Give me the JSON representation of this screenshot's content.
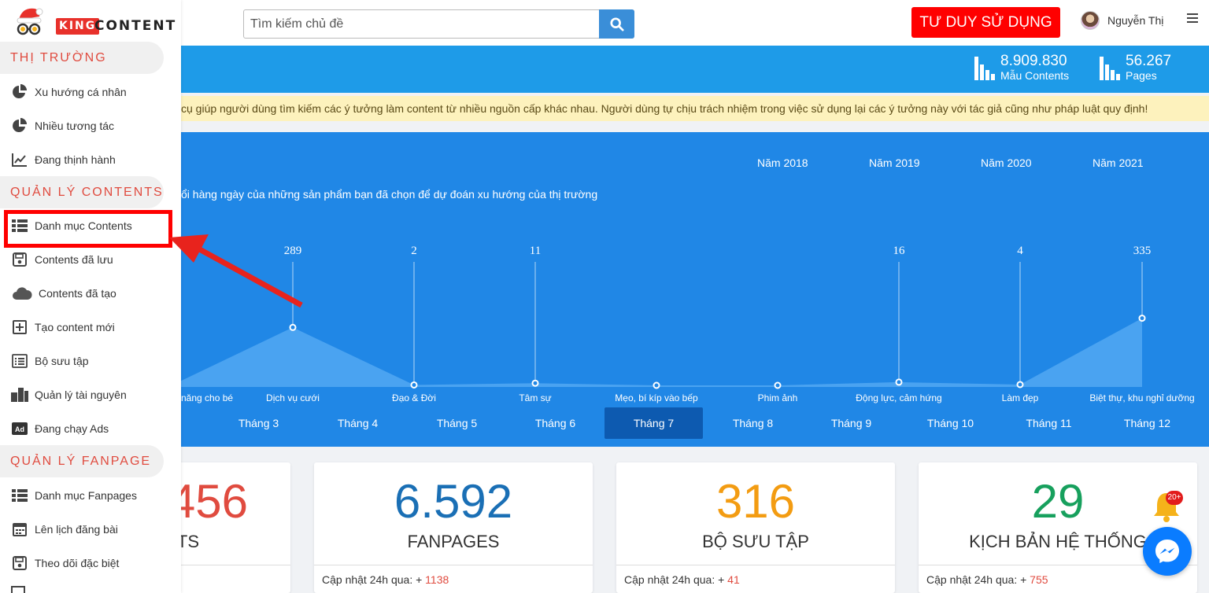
{
  "brand": {
    "king": "KING",
    "content": "CONTENT"
  },
  "search": {
    "placeholder": "Tìm kiếm chủ đề",
    "value": ""
  },
  "header": {
    "cta_label": "TƯ DUY SỬ DỤNG",
    "user_name": "Nguyễn Thị"
  },
  "stats": [
    {
      "value": "8.909.830",
      "label": "Mẫu Contents"
    },
    {
      "value": "56.267",
      "label": "Pages"
    }
  ],
  "notice": "cụ giúp người dùng tìm kiếm các ý tưởng làm content từ nhiều nguồn cấp khác nhau. Người dùng tự chịu trách nhiệm trong việc sử dụng lại các ý tưởng này với tác giả cũng như pháp luật quy định!",
  "sidebar": {
    "sections": [
      {
        "title": "THỊ TRƯỜNG"
      },
      {
        "title": "QUẢN LÝ CONTENTS"
      },
      {
        "title": "QUẢN LÝ FANPAGE"
      }
    ],
    "items": [
      {
        "label": "Xu hướng cá nhân",
        "icon": "pie-chart-icon"
      },
      {
        "label": "Nhiều tương tác",
        "icon": "pie-chart-icon"
      },
      {
        "label": "Đang thịnh hành",
        "icon": "line-chart-icon"
      },
      {
        "label": "Danh mục Contents",
        "icon": "list-icon"
      },
      {
        "label": "Contents đã lưu",
        "icon": "save-icon"
      },
      {
        "label": "Contents đã tạo",
        "icon": "cloud-icon"
      },
      {
        "label": "Tạo content mới",
        "icon": "plus-square-icon"
      },
      {
        "label": "Bộ sưu tập",
        "icon": "collection-list-icon"
      },
      {
        "label": "Quản lý tài nguyên",
        "icon": "resources-icon"
      },
      {
        "label": "Đang chạy Ads",
        "icon": "ad-icon"
      },
      {
        "label": "Danh mục Fanpages",
        "icon": "list-icon"
      },
      {
        "label": "Lên lịch đăng bài",
        "icon": "calendar-icon"
      },
      {
        "label": "Theo dõi đặc biệt",
        "icon": "save-icon"
      }
    ]
  },
  "years": [
    "Năm 2018",
    "Năm 2019",
    "Năm 2020",
    "Năm 2021"
  ],
  "chart_desc": "ổi hàng ngày của những sản phẩm bạn đã chọn để dự đoán xu hướng của thị trường",
  "chart_data": {
    "type": "area",
    "categories": [
      "năng cho bé",
      "Dịch vụ cưới",
      "Đạo & Đời",
      "Tâm sự",
      "Mẹo, bí kíp vào bếp",
      "Phim ảnh",
      "Động lực, cảm hứng",
      "Làm đẹp",
      "Biệt thự, khu nghỉ dưỡng"
    ],
    "values": [
      null,
      289,
      2,
      11,
      null,
      null,
      16,
      4,
      335
    ],
    "baseline_values": [
      0,
      289,
      2,
      11,
      0,
      0,
      16,
      4,
      335
    ],
    "ylim": [
      0,
      400
    ]
  },
  "months": [
    "Tháng 3",
    "Tháng 4",
    "Tháng 5",
    "Tháng 6",
    "Tháng 7",
    "Tháng 8",
    "Tháng 9",
    "Tháng 10",
    "Tháng 11",
    "Tháng 12"
  ],
  "active_month": "Tháng 7",
  "cards": [
    {
      "value": "456",
      "label": "TS",
      "foot_prefix": "",
      "delta": "",
      "color": "#e04b3f"
    },
    {
      "value": "6.592",
      "label": "FANPAGES",
      "foot_prefix": "Cập nhật 24h qua: + ",
      "delta": "1138",
      "color": "#1a6fb5"
    },
    {
      "value": "316",
      "label": "BỘ SƯU TẬP",
      "foot_prefix": "Cập nhật 24h qua: + ",
      "delta": "41",
      "color": "#f39c12"
    },
    {
      "value": "29",
      "label": "KỊCH BẢN HỆ THỐNG",
      "foot_prefix": "Cập nhật 24h qua: + ",
      "delta": "755",
      "color": "#17a05d"
    }
  ],
  "notification_badge": "20+"
}
